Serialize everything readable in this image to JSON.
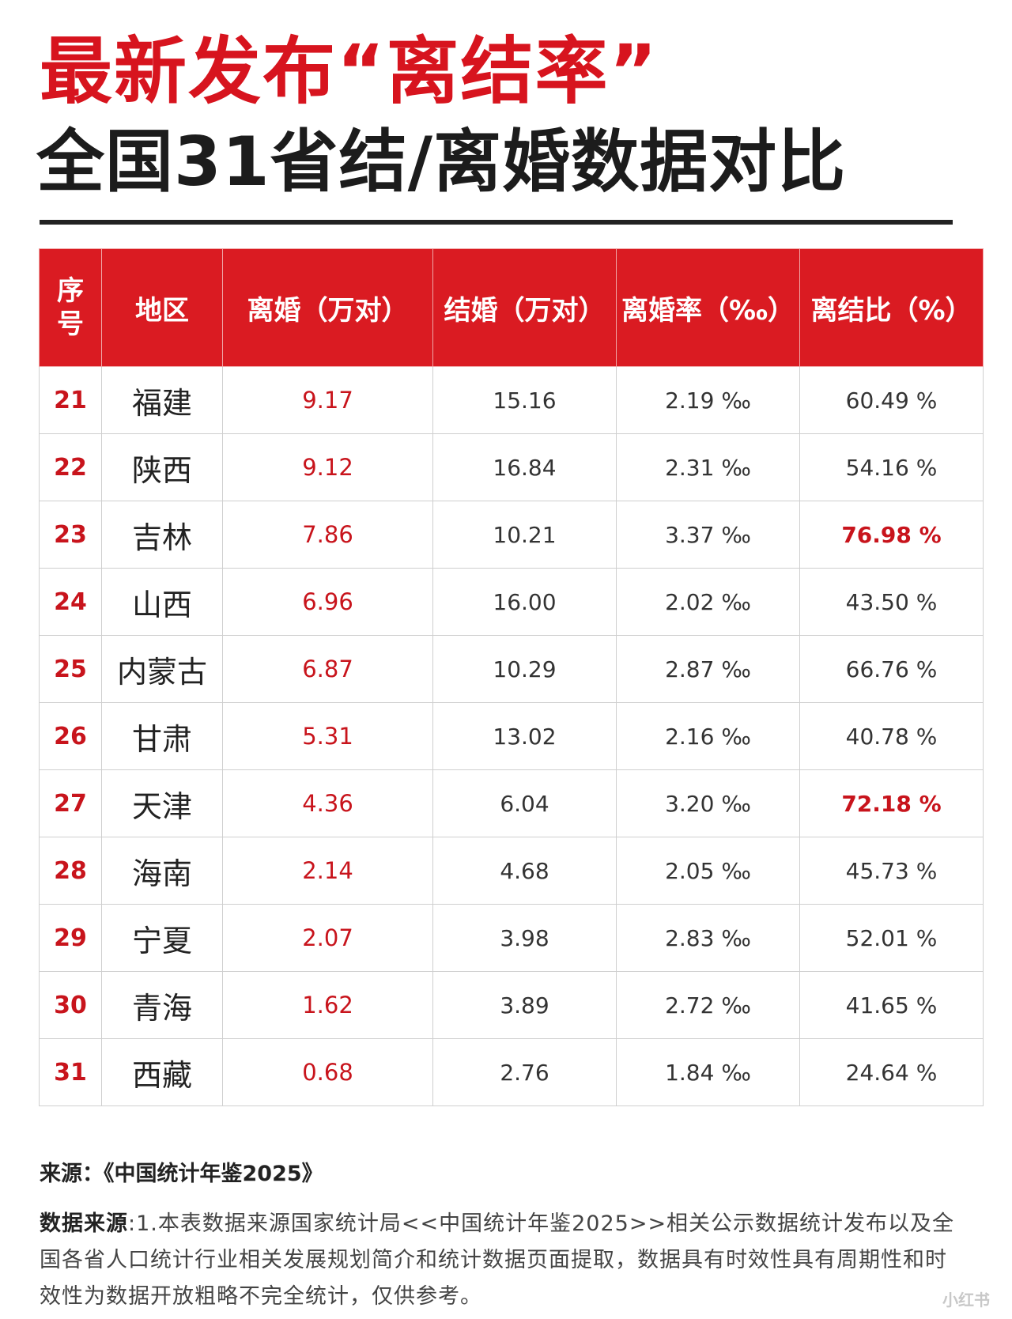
{
  "title_line1": "最新发布“离结率”",
  "title_line2": "全国31省结/离婚数据对比",
  "headers": {
    "seq_top": "序",
    "seq_bottom": "号",
    "region": "地区",
    "divorce": "离婚（万对）",
    "marriage": "结婚（万对）",
    "divorce_rate": "离婚率（‰）",
    "ratio": "离结比（%）"
  },
  "rows": [
    {
      "seq": "21",
      "region": "福建",
      "divorce": "9.17",
      "marriage": "15.16",
      "divorce_rate": "2.19 ‰",
      "ratio": "60.49 %",
      "highlight": false
    },
    {
      "seq": "22",
      "region": "陕西",
      "divorce": "9.12",
      "marriage": "16.84",
      "divorce_rate": "2.31 ‰",
      "ratio": "54.16 %",
      "highlight": false
    },
    {
      "seq": "23",
      "region": "吉林",
      "divorce": "7.86",
      "marriage": "10.21",
      "divorce_rate": "3.37 ‰",
      "ratio": "76.98 %",
      "highlight": true
    },
    {
      "seq": "24",
      "region": "山西",
      "divorce": "6.96",
      "marriage": "16.00",
      "divorce_rate": "2.02 ‰",
      "ratio": "43.50 %",
      "highlight": false
    },
    {
      "seq": "25",
      "region": "内蒙古",
      "divorce": "6.87",
      "marriage": "10.29",
      "divorce_rate": "2.87 ‰",
      "ratio": "66.76 %",
      "highlight": false
    },
    {
      "seq": "26",
      "region": "甘肃",
      "divorce": "5.31",
      "marriage": "13.02",
      "divorce_rate": "2.16 ‰",
      "ratio": "40.78 %",
      "highlight": false
    },
    {
      "seq": "27",
      "region": "天津",
      "divorce": "4.36",
      "marriage": "6.04",
      "divorce_rate": "3.20 ‰",
      "ratio": "72.18 %",
      "highlight": true
    },
    {
      "seq": "28",
      "region": "海南",
      "divorce": "2.14",
      "marriage": "4.68",
      "divorce_rate": "2.05 ‰",
      "ratio": "45.73 %",
      "highlight": false
    },
    {
      "seq": "29",
      "region": "宁夏",
      "divorce": "2.07",
      "marriage": "3.98",
      "divorce_rate": "2.83 ‰",
      "ratio": "52.01 %",
      "highlight": false
    },
    {
      "seq": "30",
      "region": "青海",
      "divorce": "1.62",
      "marriage": "3.89",
      "divorce_rate": "2.72 ‰",
      "ratio": "41.65 %",
      "highlight": false
    },
    {
      "seq": "31",
      "region": "西藏",
      "divorce": "0.68",
      "marriage": "2.76",
      "divorce_rate": "1.84 ‰",
      "ratio": "24.64 %",
      "highlight": false
    }
  ],
  "source_line": "来源：《中国统计年鉴2025》",
  "note_label": "数据来源",
  "note_text": ":1.本表数据来源国家统计局<<中国统计年鉴2025>>相关公示数据统计发布以及全国各省人口统计行业相关发展规划简介和统计数据页面提取，数据具有时效性具有周期性和时效性为数据开放粗略不完全统计，仅供参考。",
  "watermark": "小红书",
  "colors": {
    "accent_red": "#da1b22",
    "text_red": "#c8141c"
  }
}
